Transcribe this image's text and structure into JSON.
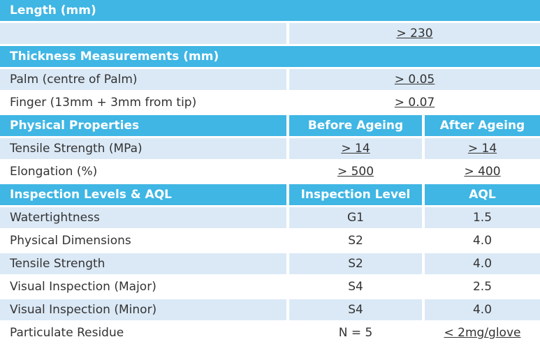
{
  "sections": {
    "length": {
      "header": "Length (mm)",
      "value": "> 230"
    },
    "thickness": {
      "header": "Thickness Measurements (mm)",
      "rows": [
        {
          "label": "Palm (centre of Palm)",
          "value": "> 0.05"
        },
        {
          "label": "Finger (13mm + 3mm from tip)",
          "value": "> 0.07"
        }
      ]
    },
    "physical": {
      "header": "Physical Properties",
      "col1": "Before Ageing",
      "col2": "After Ageing",
      "rows": [
        {
          "label": "Tensile Strength (MPa)",
          "before": "> 14",
          "after": "> 14"
        },
        {
          "label": "Elongation (%)",
          "before": "> 500",
          "after": "> 400"
        }
      ]
    },
    "inspection": {
      "header": "Inspection Levels & AQL",
      "col1": "Inspection Level",
      "col2": "AQL",
      "rows": [
        {
          "label": "Watertightness",
          "level": "G1",
          "aql": "1.5"
        },
        {
          "label": "Physical Dimensions",
          "level": "S2",
          "aql": "4.0"
        },
        {
          "label": "Tensile Strength",
          "level": "S2",
          "aql": "4.0"
        },
        {
          "label": "Visual Inspection (Major)",
          "level": "S4",
          "aql": "2.5"
        },
        {
          "label": "Visual Inspection (Minor)",
          "level": "S4",
          "aql": "4.0"
        },
        {
          "label": "Particulate Residue",
          "level": "N = 5",
          "aql": "< 2mg/glove"
        }
      ]
    }
  }
}
